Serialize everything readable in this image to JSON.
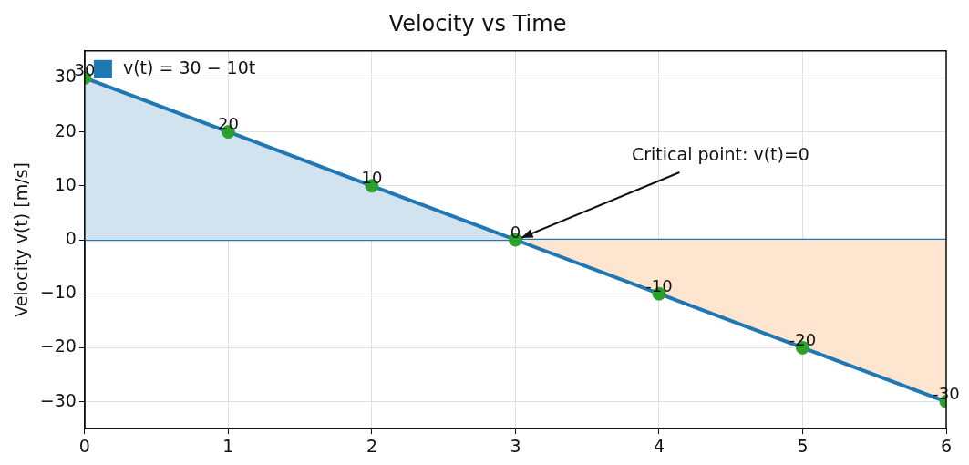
{
  "chart_data": {
    "type": "line",
    "title": "Velocity vs Time",
    "ylabel": "Velocity v(t) [m/s]",
    "x": [
      0,
      1,
      2,
      3,
      4,
      5,
      6
    ],
    "series": [
      {
        "type": "area",
        "color": "#d2e3f0",
        "x": [
          0,
          1,
          2,
          3
        ],
        "values": [
          30,
          20,
          10,
          0
        ]
      },
      {
        "type": "area",
        "color": "#fde5cf",
        "x": [
          3,
          4,
          5,
          6
        ],
        "values": [
          0,
          -10,
          -20,
          -30
        ]
      },
      {
        "name": "v(t) = 30 − 10t",
        "color": "#1f77b4",
        "values": [
          30,
          20,
          10,
          0,
          -10,
          -20,
          -30
        ],
        "marker": "none"
      },
      {
        "type": "scatter",
        "color": "#2ca02c",
        "values": [
          30,
          20,
          10,
          0,
          -10,
          -20,
          -30
        ],
        "marker": "circle",
        "value_labels": [
          "30",
          "20",
          "10",
          "0",
          "-10",
          "-20",
          "-30"
        ]
      }
    ],
    "xlim": [
      0,
      6
    ],
    "xticks": [
      0,
      1,
      2,
      3,
      4,
      5,
      6
    ],
    "ylim": [
      -35,
      35
    ],
    "yticks": [
      {
        "value": -30,
        "label": "−30"
      },
      {
        "value": -20,
        "label": "−20"
      },
      {
        "value": -10,
        "label": "−10"
      },
      0,
      10,
      20,
      30
    ],
    "ref_lines": [
      {
        "axis": "y",
        "value": 0,
        "color": "#1f77b4"
      }
    ],
    "annotations": [
      {
        "text": "Critical point: v(t)=0",
        "x": 3,
        "y": 0
      }
    ],
    "grid": true,
    "legend": "top left",
    "line_style": "solid"
  }
}
